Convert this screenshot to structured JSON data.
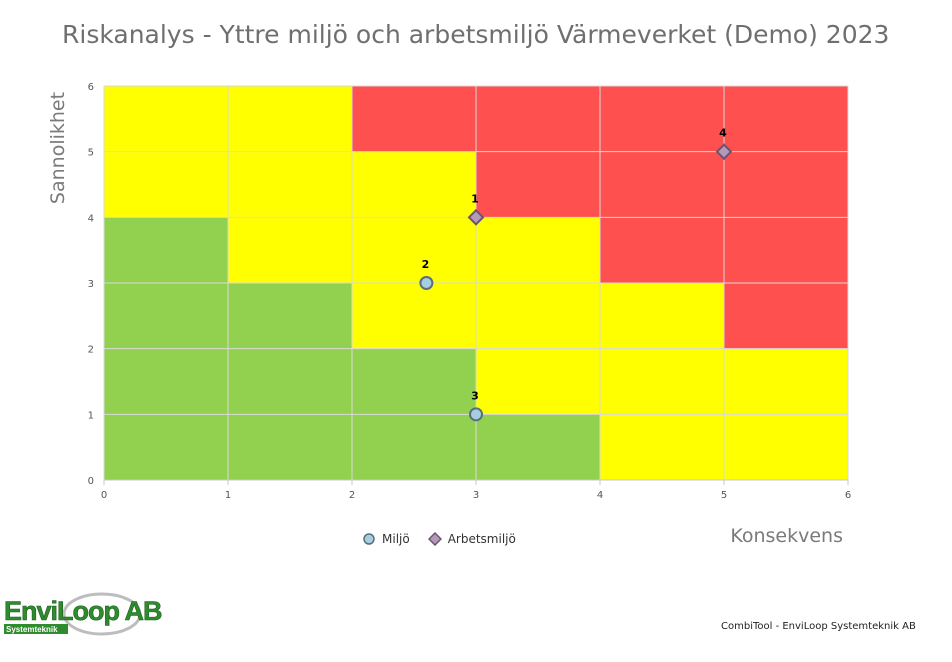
{
  "chart_data": {
    "type": "scatter",
    "title": "Riskanalys - Yttre miljö och arbetsmiljö Värmeverket (Demo) 2023",
    "xlabel": "Konsekvens",
    "ylabel": "Sannolikhet",
    "xlim": [
      0,
      6
    ],
    "ylim": [
      0,
      6
    ],
    "x_ticks": [
      "0",
      "1",
      "2",
      "3",
      "4",
      "5",
      "6"
    ],
    "y_ticks": [
      "0",
      "1",
      "2",
      "3",
      "4",
      "5",
      "6"
    ],
    "grid": true,
    "legend_position": "bottom",
    "zones": {
      "colors": {
        "green": "#92d050",
        "yellow": "#ffff00",
        "red": "#ff5050"
      },
      "rows": [
        {
          "y": [
            0,
            1
          ],
          "cells": [
            "green",
            "green",
            "green",
            "green",
            "yellow",
            "yellow"
          ]
        },
        {
          "y": [
            1,
            2
          ],
          "cells": [
            "green",
            "green",
            "green",
            "yellow",
            "yellow",
            "yellow"
          ]
        },
        {
          "y": [
            2,
            3
          ],
          "cells": [
            "green",
            "green",
            "yellow",
            "yellow",
            "yellow",
            "red"
          ]
        },
        {
          "y": [
            3,
            4
          ],
          "cells": [
            "green",
            "yellow",
            "yellow",
            "yellow",
            "red",
            "red"
          ]
        },
        {
          "y": [
            4,
            5
          ],
          "cells": [
            "yellow",
            "yellow",
            "yellow",
            "red",
            "red",
            "red"
          ]
        },
        {
          "y": [
            5,
            6
          ],
          "cells": [
            "yellow",
            "yellow",
            "red",
            "red",
            "red",
            "red"
          ]
        }
      ]
    },
    "series": [
      {
        "name": "Miljö",
        "marker": "circle",
        "fill": "#a6cde0",
        "stroke": "#5a6e7a",
        "points": [
          {
            "x": 2.6,
            "y": 3,
            "label": "2"
          },
          {
            "x": 3,
            "y": 1,
            "label": "3"
          }
        ]
      },
      {
        "name": "Arbetsmiljö",
        "marker": "diamond",
        "fill": "#b49ab8",
        "stroke": "#6b556f",
        "points": [
          {
            "x": 3,
            "y": 4,
            "label": "1"
          },
          {
            "x": 5,
            "y": 5,
            "label": "4"
          }
        ]
      }
    ]
  },
  "branding": {
    "logo_text": "EnviLoop AB",
    "logo_sub": "Systemteknik",
    "footer": "CombiTool - EnviLoop Systemteknik AB"
  }
}
